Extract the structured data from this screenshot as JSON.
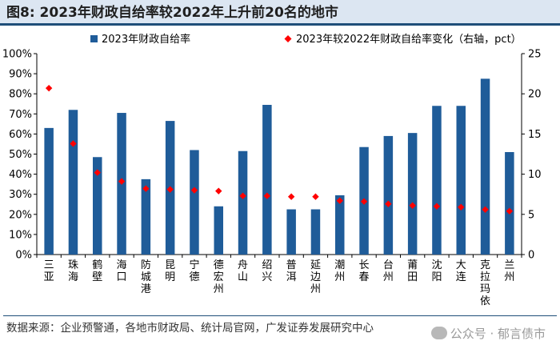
{
  "title": "图8:  2023年财政自给率较2022年上升前20名的地市",
  "source": "数据来源：企业预警通，各地市财政局、统计局官网，广发证券发展研究中心",
  "watermark": "公众号 · 郁言债市",
  "colors": {
    "bar": "#1f5c99",
    "marker": "#ff0000",
    "title_bg": "#dce6f2",
    "rule": "#1f4e79"
  },
  "chart_data": {
    "type": "bar",
    "categories": [
      "三亚",
      "珠海",
      "鹤壁",
      "海口",
      "防城港",
      "昆明",
      "宁德",
      "德宏州",
      "舟山",
      "绍兴",
      "普洱",
      "延边州",
      "潮州",
      "长春",
      "台州",
      "莆田",
      "沈阳",
      "大连",
      "克拉玛依",
      "兰州"
    ],
    "series": [
      {
        "name": "2023年财政自给率",
        "type": "bar",
        "axis": "left",
        "values": [
          63,
          72,
          48.5,
          70.5,
          37.5,
          66.5,
          52,
          24,
          51.5,
          74.5,
          22.5,
          22.5,
          29.5,
          53.5,
          59,
          60.5,
          74,
          74,
          87.5,
          51
        ]
      },
      {
        "name": "2023年较2022年财政自给率变化（右轴，pct）",
        "type": "scatter",
        "axis": "right",
        "values": [
          20.7,
          13.8,
          10.2,
          9.1,
          8.2,
          8.1,
          8.0,
          7.9,
          7.3,
          7.3,
          7.2,
          7.2,
          6.7,
          6.6,
          6.3,
          6.1,
          6.0,
          5.9,
          5.6,
          5.4
        ]
      }
    ],
    "y_left": {
      "min": 0,
      "max": 100,
      "ticks": [
        "0%",
        "10%",
        "20%",
        "30%",
        "40%",
        "50%",
        "60%",
        "70%",
        "80%",
        "90%",
        "100%"
      ]
    },
    "y_right": {
      "min": 0,
      "max": 25,
      "ticks": [
        "0",
        "5",
        "10",
        "15",
        "20",
        "25"
      ]
    },
    "legend_position": "top"
  }
}
